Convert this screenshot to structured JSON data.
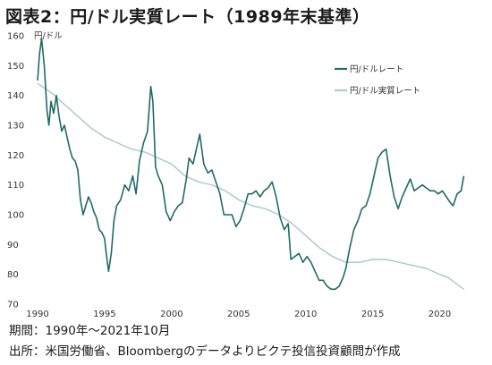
{
  "figure": {
    "title": "図表2：円/ドル実質レート（1989年末基準）",
    "period_note": "期間：1990年〜2021年10月",
    "source_note": "出所：米国労働省、Bloombergのデータよりピクテ投信投資顧問が作成"
  },
  "chart_data": {
    "type": "line",
    "ylabel": "円/ドル",
    "ylim": [
      70,
      160
    ],
    "xlim": [
      1990,
      2021.9
    ],
    "y_ticks": [
      "70",
      "80",
      "90",
      "100",
      "110",
      "120",
      "130",
      "140",
      "150",
      "160"
    ],
    "x_ticks": [
      "1990",
      "1995",
      "2000",
      "2005",
      "2010",
      "2015",
      "2020"
    ],
    "grid": false,
    "legend_position": "top-right",
    "series": [
      {
        "name": "円/ドルレート",
        "color": "#1f6b66",
        "x": [
          1990.0,
          1990.15,
          1990.3,
          1990.5,
          1990.7,
          1990.85,
          1991.0,
          1991.2,
          1991.4,
          1991.6,
          1991.8,
          1992.0,
          1992.2,
          1992.4,
          1992.6,
          1992.8,
          1993.0,
          1993.2,
          1993.4,
          1993.6,
          1993.8,
          1994.0,
          1994.2,
          1994.4,
          1994.6,
          1994.8,
          1995.0,
          1995.15,
          1995.3,
          1995.5,
          1995.7,
          1995.9,
          1996.2,
          1996.5,
          1996.8,
          1997.1,
          1997.35,
          1997.6,
          1997.9,
          1998.2,
          1998.45,
          1998.6,
          1998.8,
          1999.0,
          1999.3,
          1999.6,
          1999.9,
          2000.2,
          2000.5,
          2000.8,
          2001.1,
          2001.3,
          2001.6,
          2001.9,
          2002.1,
          2002.4,
          2002.7,
          2003.0,
          2003.3,
          2003.6,
          2003.9,
          2004.2,
          2004.5,
          2004.8,
          2005.1,
          2005.4,
          2005.7,
          2006.0,
          2006.3,
          2006.6,
          2006.9,
          2007.2,
          2007.5,
          2007.8,
          2008.1,
          2008.4,
          2008.7,
          2008.9,
          2009.2,
          2009.5,
          2009.8,
          2010.1,
          2010.4,
          2010.7,
          2011.0,
          2011.3,
          2011.6,
          2011.9,
          2012.2,
          2012.5,
          2012.8,
          2013.0,
          2013.3,
          2013.6,
          2013.9,
          2014.2,
          2014.5,
          2014.8,
          2015.1,
          2015.4,
          2015.7,
          2016.0,
          2016.3,
          2016.6,
          2016.9,
          2017.2,
          2017.5,
          2017.8,
          2018.1,
          2018.4,
          2018.7,
          2019.0,
          2019.3,
          2019.6,
          2019.9,
          2020.2,
          2020.5,
          2020.8,
          2021.0,
          2021.3,
          2021.6,
          2021.8
        ],
        "values": [
          145,
          154,
          159,
          150,
          135,
          130,
          138,
          134,
          140,
          133,
          128,
          130,
          126,
          122,
          119,
          118,
          115,
          105,
          100,
          103,
          106,
          104,
          101,
          99,
          95,
          94,
          92,
          86,
          81,
          87,
          98,
          103,
          105,
          110,
          108,
          113,
          107,
          118,
          124,
          128,
          143,
          138,
          116,
          113,
          110,
          101,
          98,
          101,
          103,
          104,
          112,
          119,
          117,
          123,
          127,
          117,
          114,
          115,
          111,
          107,
          100,
          100,
          100,
          96,
          98,
          102,
          107,
          107,
          108,
          106,
          108,
          109,
          111,
          106,
          99,
          95,
          97,
          85,
          86,
          87,
          84,
          86,
          84,
          81,
          78,
          78,
          76,
          75,
          75,
          76,
          79,
          82,
          89,
          95,
          98,
          102,
          103,
          107,
          113,
          119,
          121,
          122,
          113,
          106,
          102,
          106,
          109,
          112,
          108,
          109,
          110,
          109,
          108,
          108,
          107,
          108,
          106,
          104,
          103,
          107,
          108,
          113
        ]
      },
      {
        "name": "円/ドル実質レート",
        "color": "#a9ccc7",
        "x": [
          1990.0,
          1991.0,
          1992.0,
          1993.0,
          1994.0,
          1995.0,
          1996.0,
          1997.0,
          1998.0,
          1999.0,
          2000.0,
          2001.0,
          2002.0,
          2003.0,
          2004.0,
          2005.0,
          2006.0,
          2007.0,
          2008.0,
          2009.0,
          2010.0,
          2011.0,
          2012.0,
          2013.0,
          2014.0,
          2015.0,
          2016.0,
          2017.0,
          2018.0,
          2019.0,
          2020.0,
          2020.6,
          2021.2,
          2021.8
        ],
        "values": [
          144,
          141,
          137,
          133,
          129,
          126,
          124,
          122,
          121,
          119,
          117,
          113,
          111,
          110,
          108,
          105,
          103,
          102,
          100,
          97,
          93,
          89,
          86,
          84,
          84,
          85,
          85,
          84,
          83,
          82,
          80,
          79,
          77,
          75
        ]
      }
    ]
  }
}
